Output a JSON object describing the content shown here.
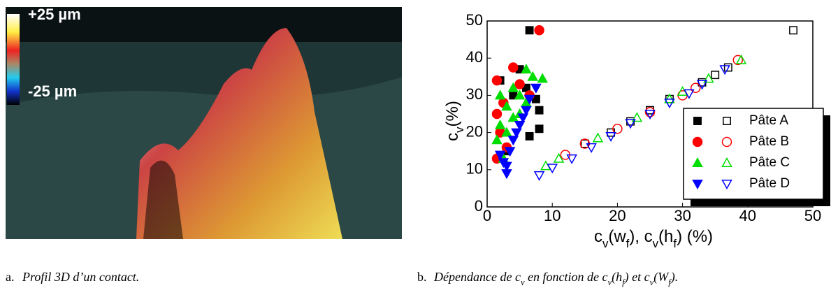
{
  "image": {
    "top_label": "+25 µm",
    "bottom_label": "-25 µm"
  },
  "captions": {
    "a": {
      "tag": "a.",
      "text": [
        "Profil 3D d’un contact."
      ]
    },
    "b": {
      "tag": "b.",
      "text": [
        "Dépendance de ",
        "c",
        "v",
        " en fonction de ",
        "c",
        "v",
        "(",
        "h",
        "f",
        ") et ",
        "c",
        "v",
        "(",
        "W",
        "f",
        ")."
      ]
    }
  },
  "chart_data": {
    "type": "scatter",
    "xlabel": [
      "c",
      "v",
      "(w",
      "f",
      "), c",
      "v",
      "(h",
      "f",
      ")  (%)"
    ],
    "ylabel": [
      "c",
      "v",
      "(%)"
    ],
    "xlim": [
      0,
      50
    ],
    "xticks": [
      0,
      10,
      20,
      30,
      40,
      50
    ],
    "ylim": [
      0,
      50
    ],
    "yticks": [
      0,
      10,
      20,
      30,
      40,
      50
    ],
    "legend": "right",
    "series": [
      {
        "name": "Pâte A",
        "color": "#000000",
        "marker": "square",
        "filled": {
          "x": [
            6.5,
            2,
            5,
            7.5,
            8,
            8,
            6.5,
            3,
            4,
            6
          ],
          "values": [
            47.5,
            34,
            37,
            29,
            26,
            21,
            19,
            15,
            30,
            32
          ]
        },
        "open": {
          "x": [
            47,
            37,
            35,
            33,
            28,
            25,
            22,
            19,
            15
          ],
          "values": [
            47.5,
            37.5,
            35.5,
            33.5,
            29,
            26,
            23,
            20,
            17
          ]
        }
      },
      {
        "name": "Pâte B",
        "color": "#ff0000",
        "marker": "circle",
        "filled": {
          "x": [
            8,
            1.5,
            4,
            1.5,
            2,
            1.5,
            3,
            5,
            6.5,
            2.5
          ],
          "values": [
            47.5,
            34,
            37.5,
            25,
            20,
            13,
            16,
            33,
            30,
            28
          ]
        },
        "open": {
          "x": [
            38.5,
            32,
            30,
            25,
            20,
            15,
            12
          ],
          "values": [
            39.5,
            32,
            30,
            25.5,
            21,
            17,
            14
          ]
        }
      },
      {
        "name": "Pâte C",
        "color": "#00dd00",
        "marker": "triangle",
        "filled": {
          "x": [
            6,
            8.5,
            2,
            4,
            3,
            2,
            5,
            6,
            1.5,
            3,
            7,
            4,
            2.5,
            5
          ],
          "values": [
            37,
            34.5,
            30,
            32,
            27,
            22,
            25,
            28,
            18,
            20,
            35,
            24,
            13,
            30
          ]
        },
        "open": {
          "x": [
            39,
            34,
            30,
            28,
            23,
            17,
            11,
            9
          ],
          "values": [
            39.5,
            34.5,
            31,
            29,
            24,
            18.5,
            13,
            11
          ]
        }
      },
      {
        "name": "Pâte D",
        "color": "#0000ff",
        "marker": "triangle-down",
        "filled": {
          "x": [
            3,
            2.5,
            3.5,
            4,
            5,
            6,
            7.5,
            3,
            4.5,
            5.5,
            2,
            6.5
          ],
          "values": [
            9,
            12,
            15,
            18,
            22,
            26,
            32,
            11,
            20,
            24,
            14,
            29
          ]
        },
        "open": {
          "x": [
            8,
            10,
            13,
            16,
            19,
            22,
            25,
            28,
            31,
            33,
            36.5
          ],
          "values": [
            8.5,
            10.5,
            13,
            16,
            19,
            22.5,
            25,
            28,
            30.5,
            33,
            37
          ]
        }
      }
    ]
  }
}
